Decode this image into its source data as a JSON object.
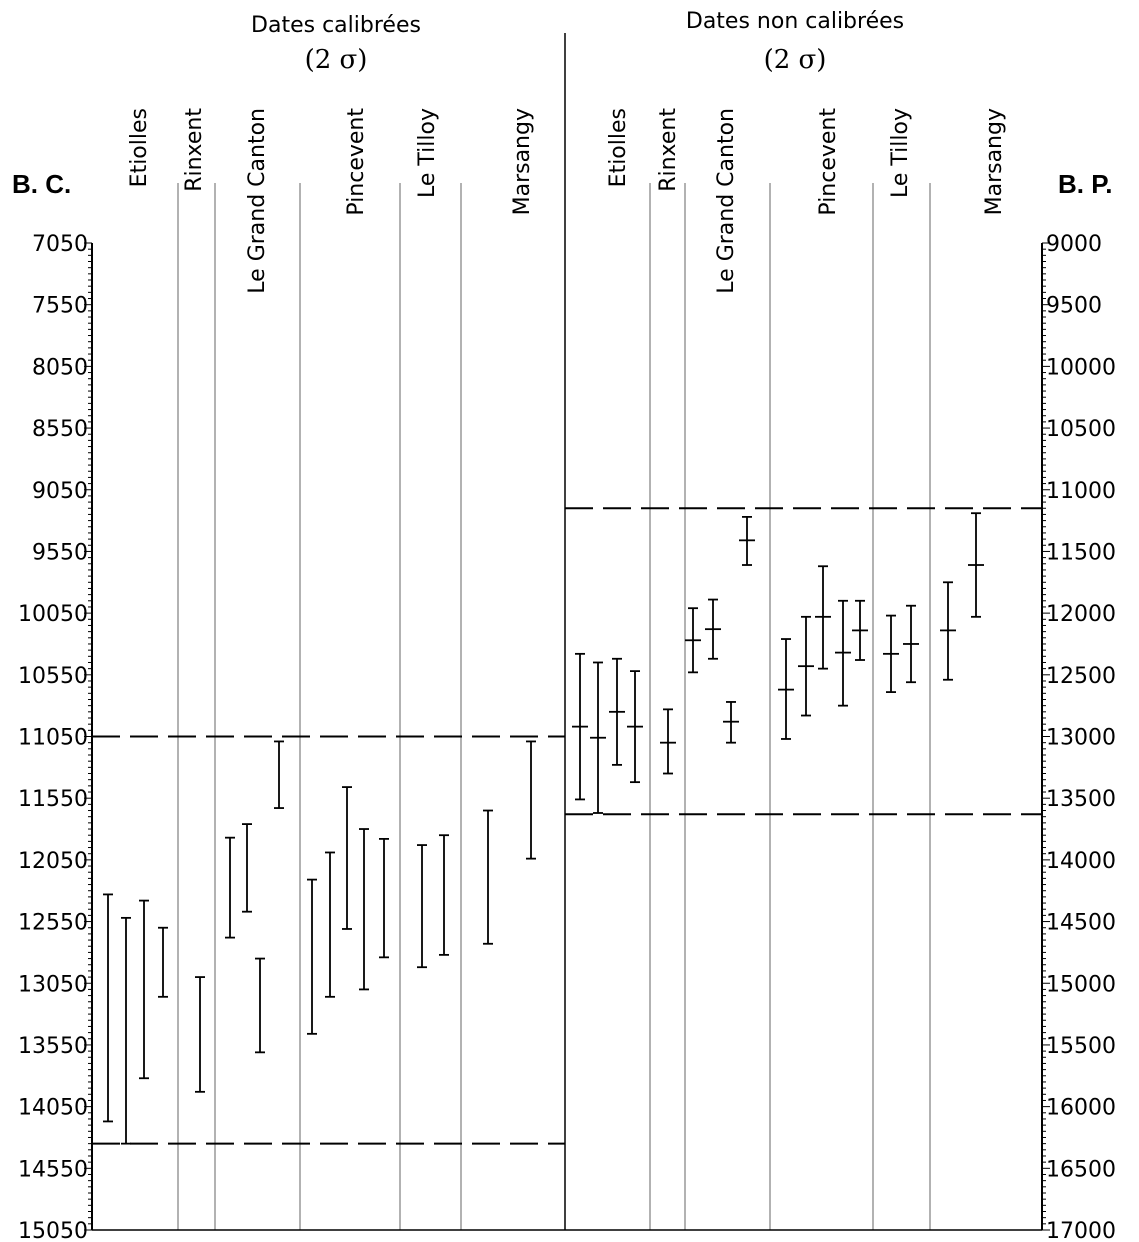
{
  "titles": {
    "left": [
      "Dates calibrées",
      "(2 σ)"
    ],
    "right": [
      "Dates non calibrées",
      "(2 σ)"
    ]
  },
  "axis_labels": {
    "left": "B. C.",
    "right": "B. P."
  },
  "chart_data": [
    {
      "type": "range",
      "panel": "left",
      "title": "Dates calibrées (2 σ)",
      "ylabel": "B. C.",
      "ylim": [
        7050,
        15050
      ],
      "yticks": [
        7050,
        7550,
        8050,
        8550,
        9050,
        9550,
        10050,
        10550,
        11050,
        11550,
        12050,
        12550,
        13050,
        13550,
        14050,
        14550,
        15050
      ],
      "sites": [
        "Etiolles",
        "Rinxent",
        "Le Grand Canton",
        "Pincevent",
        "Le Tilloy",
        "Marsangy"
      ],
      "dashed_lines": [
        11050,
        14350
      ],
      "ranges": [
        {
          "site": "Etiolles",
          "low": 12330,
          "high": 14170
        },
        {
          "site": "Etiolles",
          "low": 12520,
          "high": 14350
        },
        {
          "site": "Etiolles",
          "low": 12380,
          "high": 13820
        },
        {
          "site": "Etiolles",
          "low": 12600,
          "high": 13160
        },
        {
          "site": "Rinxent",
          "low": 13000,
          "high": 13930
        },
        {
          "site": "Le Grand Canton",
          "low": 11870,
          "high": 12680
        },
        {
          "site": "Le Grand Canton",
          "low": 11760,
          "high": 12470
        },
        {
          "site": "Le Grand Canton",
          "low": 12850,
          "high": 13610
        },
        {
          "site": "Le Grand Canton",
          "low": 11090,
          "high": 11630
        },
        {
          "site": "Pincevent",
          "low": 12210,
          "high": 13460
        },
        {
          "site": "Pincevent",
          "low": 11990,
          "high": 13160
        },
        {
          "site": "Pincevent",
          "low": 11460,
          "high": 12610
        },
        {
          "site": "Pincevent",
          "low": 11800,
          "high": 13100
        },
        {
          "site": "Pincevent",
          "low": 11880,
          "high": 12840
        },
        {
          "site": "Le Tilloy",
          "low": 11930,
          "high": 12920
        },
        {
          "site": "Le Tilloy",
          "low": 11850,
          "high": 12820
        },
        {
          "site": "Marsangy",
          "low": 11650,
          "high": 12730
        },
        {
          "site": "Marsangy",
          "low": 11090,
          "high": 12040
        }
      ]
    },
    {
      "type": "range",
      "panel": "right",
      "title": "Dates non calibrées (2 σ)",
      "ylabel": "B. P.",
      "ylim": [
        9000,
        17000
      ],
      "yticks": [
        9000,
        9500,
        10000,
        10500,
        11000,
        11500,
        12000,
        12500,
        13000,
        13500,
        14000,
        14500,
        15000,
        15500,
        16000,
        16500,
        17000
      ],
      "sites": [
        "Etiolles",
        "Rinxent",
        "Le Grand Canton",
        "Pincevent",
        "Le Tilloy",
        "Marsangy"
      ],
      "dashed_lines": [
        11150,
        13630
      ],
      "ranges": [
        {
          "site": "Etiolles",
          "low": 12330,
          "mid": 12920,
          "high": 13510
        },
        {
          "site": "Etiolles",
          "low": 12400,
          "mid": 13010,
          "high": 13620
        },
        {
          "site": "Etiolles",
          "low": 12370,
          "mid": 12800,
          "high": 13230
        },
        {
          "site": "Etiolles",
          "low": 12470,
          "mid": 12920,
          "high": 13370
        },
        {
          "site": "Rinxent",
          "low": 12780,
          "mid": 13050,
          "high": 13300
        },
        {
          "site": "Le Grand Canton",
          "low": 11960,
          "mid": 12220,
          "high": 12480
        },
        {
          "site": "Le Grand Canton",
          "low": 11890,
          "mid": 12130,
          "high": 12370
        },
        {
          "site": "Le Grand Canton",
          "low": 12720,
          "mid": 12880,
          "high": 13050
        },
        {
          "site": "Le Grand Canton",
          "low": 11220,
          "mid": 11410,
          "high": 11610
        },
        {
          "site": "Pincevent",
          "low": 12210,
          "mid": 12620,
          "high": 13020
        },
        {
          "site": "Pincevent",
          "low": 12030,
          "mid": 12430,
          "high": 12830
        },
        {
          "site": "Pincevent",
          "low": 11620,
          "mid": 12030,
          "high": 12450
        },
        {
          "site": "Pincevent",
          "low": 11900,
          "mid": 12320,
          "high": 12750
        },
        {
          "site": "Pincevent",
          "low": 11900,
          "mid": 12140,
          "high": 12380
        },
        {
          "site": "Le Tilloy",
          "low": 12020,
          "mid": 12330,
          "high": 12640
        },
        {
          "site": "Le Tilloy",
          "low": 11940,
          "mid": 12250,
          "high": 12560
        },
        {
          "site": "Marsangy",
          "low": 11750,
          "mid": 12140,
          "high": 12540
        },
        {
          "site": "Marsangy",
          "low": 11190,
          "mid": 11610,
          "high": 12030
        }
      ]
    }
  ]
}
